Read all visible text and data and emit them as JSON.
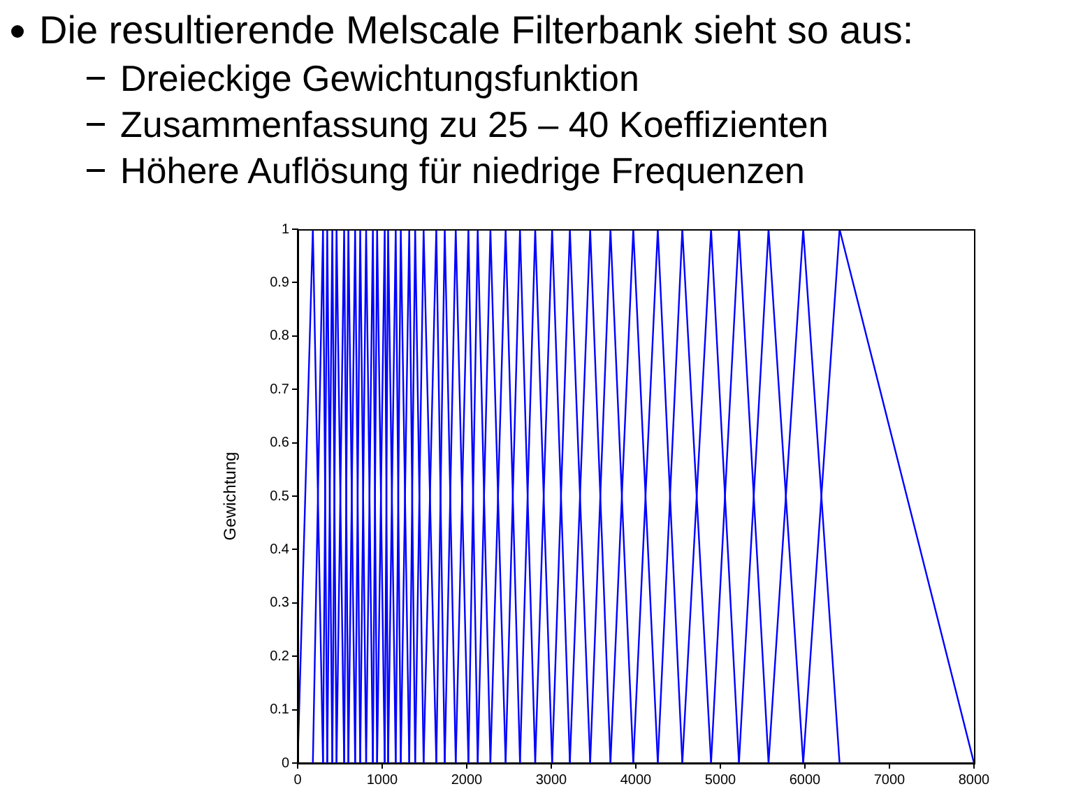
{
  "chart_data": {
    "type": "line",
    "title": "Die resultierende Melscale Filterbank sieht so aus:",
    "annotations": [
      "Dreieckige Gewichtungsfunktion",
      "Zusammenfassung zu 25 – 40 Koeffizienten",
      "Höhere Auflösung für niedrige Frequenzen"
    ],
    "ylabel": "Gewichtung",
    "xlim": [
      0,
      8000
    ],
    "ylim": [
      0,
      1
    ],
    "xticks": [
      0,
      1000,
      2000,
      3000,
      4000,
      5000,
      6000,
      7000,
      8000
    ],
    "yticks": [
      0,
      0.1,
      0.2,
      0.3,
      0.4,
      0.5,
      0.6,
      0.7,
      0.8,
      0.9,
      1
    ],
    "grid": false,
    "legend": false,
    "marker": "none",
    "line_style": "solid",
    "series": [
      {
        "color": "#0000ff",
        "x": [
          0,
          180,
          300
        ],
        "values": [
          0,
          1,
          0
        ]
      },
      {
        "color": "#0000ff",
        "x": [
          180,
          300,
          350
        ],
        "values": [
          0,
          1,
          0
        ]
      },
      {
        "color": "#0000ff",
        "x": [
          300,
          350,
          410
        ],
        "values": [
          0,
          1,
          0
        ]
      },
      {
        "color": "#0000ff",
        "x": [
          350,
          410,
          460
        ],
        "values": [
          0,
          1,
          0
        ]
      },
      {
        "color": "#0000ff",
        "x": [
          410,
          460,
          550
        ],
        "values": [
          0,
          1,
          0
        ]
      },
      {
        "color": "#0000ff",
        "x": [
          460,
          550,
          600
        ],
        "values": [
          0,
          1,
          0
        ]
      },
      {
        "color": "#0000ff",
        "x": [
          550,
          600,
          680
        ],
        "values": [
          0,
          1,
          0
        ]
      },
      {
        "color": "#0000ff",
        "x": [
          600,
          680,
          740
        ],
        "values": [
          0,
          1,
          0
        ]
      },
      {
        "color": "#0000ff",
        "x": [
          680,
          740,
          810
        ],
        "values": [
          0,
          1,
          0
        ]
      },
      {
        "color": "#0000ff",
        "x": [
          740,
          810,
          890
        ],
        "values": [
          0,
          1,
          0
        ]
      },
      {
        "color": "#0000ff",
        "x": [
          810,
          890,
          940
        ],
        "values": [
          0,
          1,
          0
        ]
      },
      {
        "color": "#0000ff",
        "x": [
          890,
          940,
          1030
        ],
        "values": [
          0,
          1,
          0
        ]
      },
      {
        "color": "#0000ff",
        "x": [
          940,
          1030,
          1070
        ],
        "values": [
          0,
          1,
          0
        ]
      },
      {
        "color": "#0000ff",
        "x": [
          1030,
          1070,
          1160
        ],
        "values": [
          0,
          1,
          0
        ]
      },
      {
        "color": "#0000ff",
        "x": [
          1070,
          1160,
          1220
        ],
        "values": [
          0,
          1,
          0
        ]
      },
      {
        "color": "#0000ff",
        "x": [
          1160,
          1220,
          1320
        ],
        "values": [
          0,
          1,
          0
        ]
      },
      {
        "color": "#0000ff",
        "x": [
          1220,
          1320,
          1390
        ],
        "values": [
          0,
          1,
          0
        ]
      },
      {
        "color": "#0000ff",
        "x": [
          1320,
          1390,
          1490
        ],
        "values": [
          0,
          1,
          0
        ]
      },
      {
        "color": "#0000ff",
        "x": [
          1390,
          1490,
          1640
        ],
        "values": [
          0,
          1,
          0
        ]
      },
      {
        "color": "#0000ff",
        "x": [
          1490,
          1640,
          1740
        ],
        "values": [
          0,
          1,
          0
        ]
      },
      {
        "color": "#0000ff",
        "x": [
          1640,
          1740,
          1870
        ],
        "values": [
          0,
          1,
          0
        ]
      },
      {
        "color": "#0000ff",
        "x": [
          1740,
          1870,
          2020
        ],
        "values": [
          0,
          1,
          0
        ]
      },
      {
        "color": "#0000ff",
        "x": [
          1870,
          2020,
          2130
        ],
        "values": [
          0,
          1,
          0
        ]
      },
      {
        "color": "#0000ff",
        "x": [
          2020,
          2130,
          2280
        ],
        "values": [
          0,
          1,
          0
        ]
      },
      {
        "color": "#0000ff",
        "x": [
          2130,
          2280,
          2460
        ],
        "values": [
          0,
          1,
          0
        ]
      },
      {
        "color": "#0000ff",
        "x": [
          2280,
          2460,
          2630
        ],
        "values": [
          0,
          1,
          0
        ]
      },
      {
        "color": "#0000ff",
        "x": [
          2460,
          2630,
          2810
        ],
        "values": [
          0,
          1,
          0
        ]
      },
      {
        "color": "#0000ff",
        "x": [
          2630,
          2810,
          3010
        ],
        "values": [
          0,
          1,
          0
        ]
      },
      {
        "color": "#0000ff",
        "x": [
          2810,
          3010,
          3220
        ],
        "values": [
          0,
          1,
          0
        ]
      },
      {
        "color": "#0000ff",
        "x": [
          3010,
          3220,
          3460
        ],
        "values": [
          0,
          1,
          0
        ]
      },
      {
        "color": "#0000ff",
        "x": [
          3220,
          3460,
          3700
        ],
        "values": [
          0,
          1,
          0
        ]
      },
      {
        "color": "#0000ff",
        "x": [
          3460,
          3700,
          3970
        ],
        "values": [
          0,
          1,
          0
        ]
      },
      {
        "color": "#0000ff",
        "x": [
          3700,
          3970,
          4260
        ],
        "values": [
          0,
          1,
          0
        ]
      },
      {
        "color": "#0000ff",
        "x": [
          3970,
          4260,
          4550
        ],
        "values": [
          0,
          1,
          0
        ]
      },
      {
        "color": "#0000ff",
        "x": [
          4260,
          4550,
          4890
        ],
        "values": [
          0,
          1,
          0
        ]
      },
      {
        "color": "#0000ff",
        "x": [
          4550,
          4890,
          5220
        ],
        "values": [
          0,
          1,
          0
        ]
      },
      {
        "color": "#0000ff",
        "x": [
          4890,
          5220,
          5570
        ],
        "values": [
          0,
          1,
          0
        ]
      },
      {
        "color": "#0000ff",
        "x": [
          5220,
          5570,
          5980
        ],
        "values": [
          0,
          1,
          0
        ]
      },
      {
        "color": "#0000ff",
        "x": [
          5570,
          5980,
          6410
        ],
        "values": [
          0,
          1,
          0
        ]
      },
      {
        "color": "#0000ff",
        "x": [
          5980,
          6410,
          8000
        ],
        "values": [
          0,
          1,
          0
        ]
      }
    ]
  }
}
